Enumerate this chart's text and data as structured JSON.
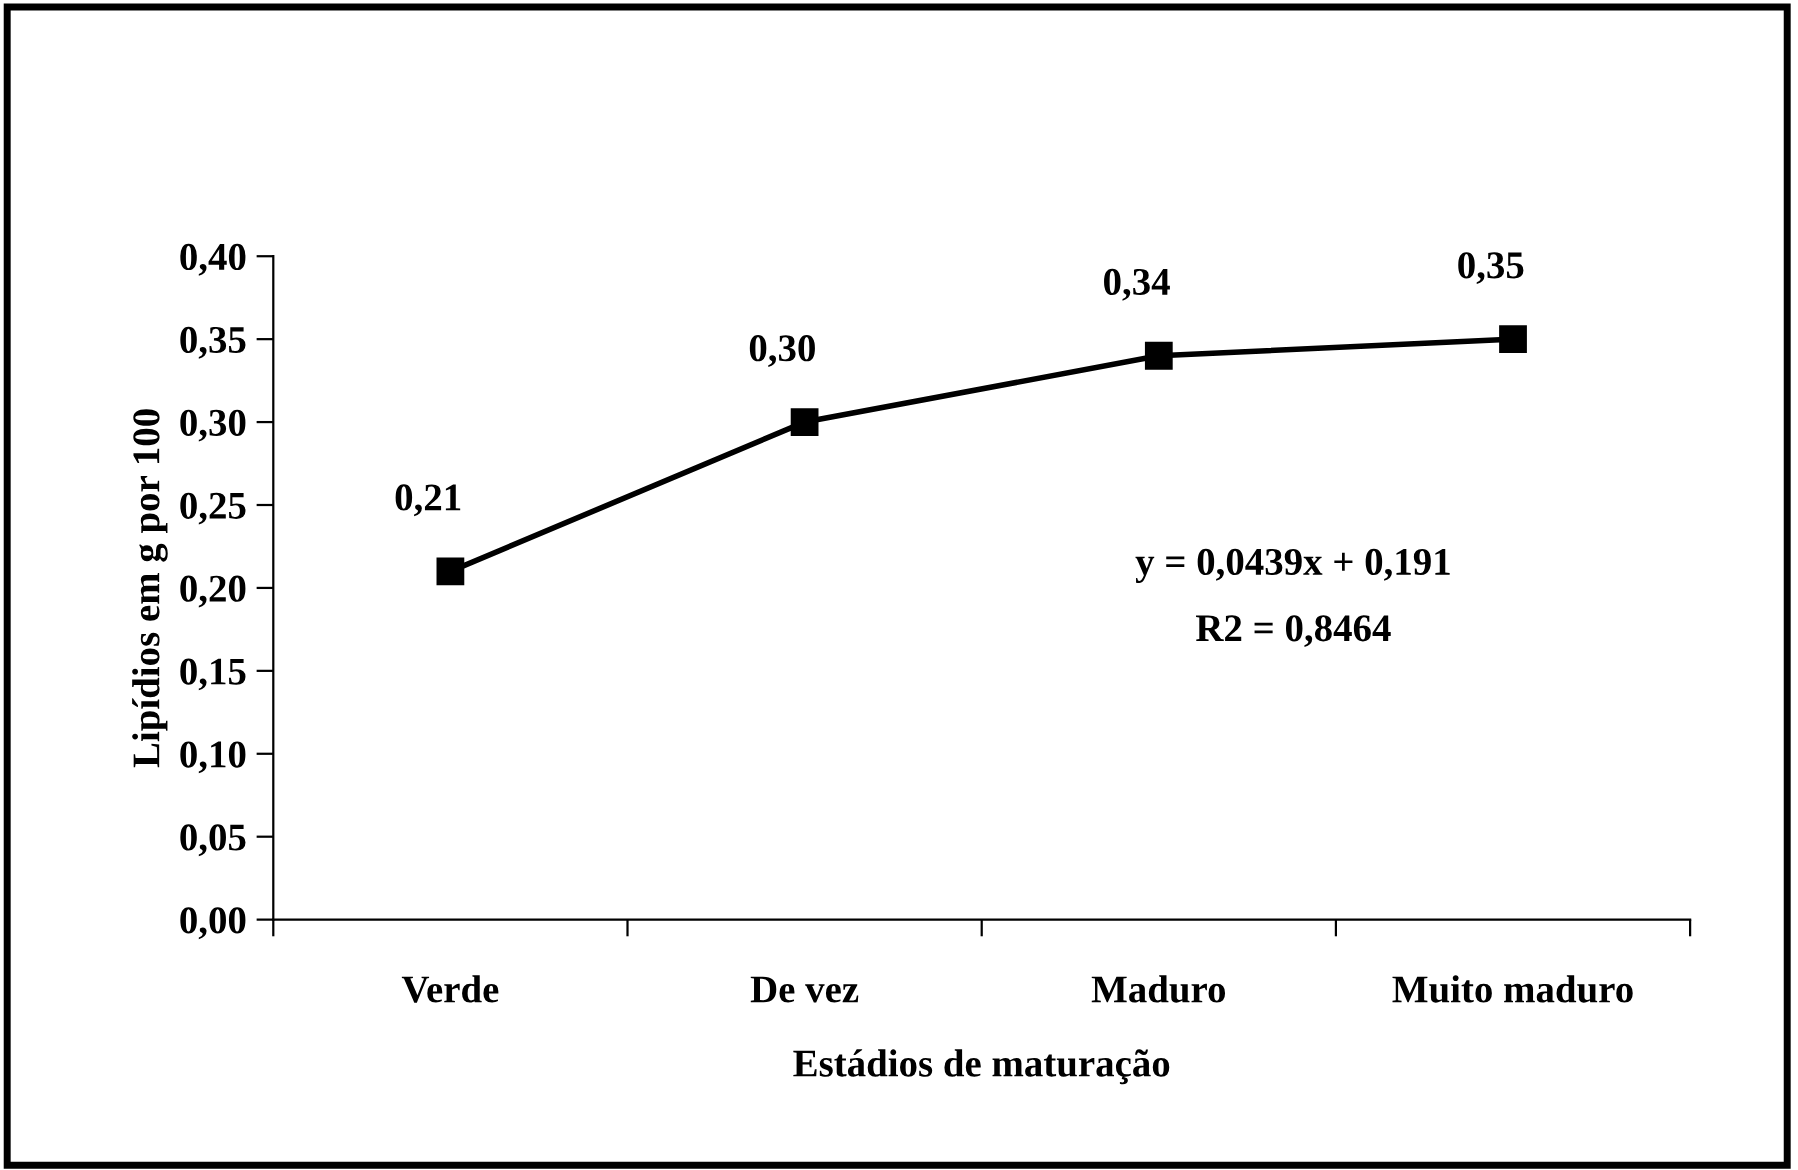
{
  "chart_data": {
    "type": "line",
    "xlabel": "Estádios de maturação",
    "ylabel": "Lipídios em g por 100",
    "categories": [
      "Verde",
      "De vez",
      "Maduro",
      "Muito maduro"
    ],
    "series": [
      {
        "color": "#000000",
        "values": [
          0.21,
          0.3,
          0.34,
          0.35
        ],
        "value_labels": [
          "0,21",
          "0,30",
          "0,34",
          "0,35"
        ]
      }
    ],
    "marker": "square",
    "line_style": "solid",
    "ylim": [
      0,
      0.4
    ],
    "yticks": [
      {
        "value": 0,
        "label": "0,00"
      },
      {
        "value": 0.05,
        "label": "0,05"
      },
      {
        "value": 0.1,
        "label": "0,10"
      },
      {
        "value": 0.15,
        "label": "0,15"
      },
      {
        "value": 0.2,
        "label": "0,20"
      },
      {
        "value": 0.25,
        "label": "0,25"
      },
      {
        "value": 0.3,
        "label": "0,30"
      },
      {
        "value": 0.35,
        "label": "0,35"
      },
      {
        "value": 0.4,
        "label": "0,40"
      }
    ],
    "annotations": [
      "y = 0,0439x + 0,191",
      "R2 = 0,8464"
    ],
    "grid": false,
    "legend": false
  }
}
